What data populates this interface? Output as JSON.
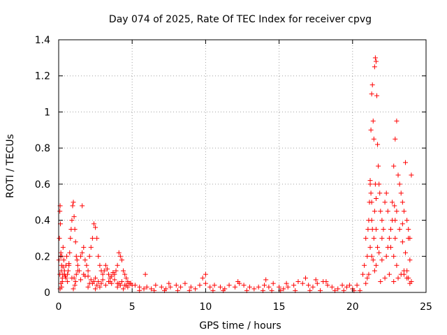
{
  "chart_data": {
    "type": "scatter",
    "title": "Day 074 of 2025, Rate Of TEC Index for receiver cpvg",
    "xlabel": "GPS time / hours",
    "ylabel": "ROTI / TECUs",
    "xlim": [
      0,
      25
    ],
    "ylim": [
      0,
      1.4
    ],
    "xticks": [
      0,
      5,
      10,
      15,
      20,
      25
    ],
    "xtick_labels": [
      "0",
      "5",
      "10",
      "15",
      "20",
      "25"
    ],
    "yticks": [
      0,
      0.2,
      0.4,
      0.6,
      0.8,
      1.0,
      1.2,
      1.4
    ],
    "ytick_labels": [
      "0",
      "0.2",
      "0.4",
      "0.6",
      "0.8",
      "1",
      "1.2",
      "1.4"
    ],
    "grid": true,
    "marker": "+",
    "marker_color": "#ff0000",
    "series": [
      {
        "x": [
          0.02,
          0.05,
          0.08,
          0.1,
          0.12,
          0.15,
          0.18,
          0.2,
          0.22,
          0.25,
          0.28,
          0.3,
          0.35,
          0.4,
          0.45,
          0.5,
          0.55,
          0.6,
          0.65,
          0.7,
          0.75,
          0.8,
          0.85,
          0.9,
          0.95,
          1.0,
          1.05,
          1.1,
          1.15,
          1.2,
          1.25,
          1.3,
          1.4,
          1.5,
          1.6,
          1.7,
          1.8,
          1.9,
          2.0,
          2.1,
          2.2,
          2.3,
          2.4,
          2.5,
          2.6,
          2.7,
          2.8,
          2.9,
          3.0,
          3.1,
          3.2,
          3.3,
          3.4,
          3.5,
          3.6,
          3.7,
          3.8,
          3.9,
          4.0,
          4.1,
          4.2,
          4.3,
          4.4,
          4.5,
          4.6,
          4.7,
          4.8,
          4.9,
          5.0,
          0.1,
          0.15,
          0.2,
          0.25,
          1.0,
          1.05,
          1.1,
          1.15,
          1.6,
          2.0,
          2.1,
          2.2,
          2.5,
          2.6,
          2.7,
          2.8,
          2.9,
          4.0,
          4.1,
          4.2,
          4.3,
          4.4,
          0.3,
          0.4,
          0.6,
          0.9,
          1.2,
          1.5,
          1.8,
          2.3,
          2.4,
          3.2,
          3.4,
          3.6,
          3.8,
          4.5,
          4.7,
          4.9,
          0.08,
          0.12,
          0.5,
          0.7,
          1.3,
          1.7,
          2.0,
          2.5,
          3.0,
          3.5,
          4.0,
          4.6
        ],
        "y": [
          0.18,
          0.3,
          0.45,
          0.48,
          0.38,
          0.22,
          0.12,
          0.15,
          0.2,
          0.08,
          0.1,
          0.14,
          0.18,
          0.12,
          0.09,
          0.15,
          0.2,
          0.1,
          0.12,
          0.16,
          0.22,
          0.3,
          0.35,
          0.4,
          0.48,
          0.5,
          0.42,
          0.35,
          0.28,
          0.2,
          0.18,
          0.15,
          0.12,
          0.2,
          0.22,
          0.25,
          0.18,
          0.15,
          0.12,
          0.2,
          0.25,
          0.3,
          0.38,
          0.36,
          0.3,
          0.2,
          0.15,
          0.12,
          0.1,
          0.12,
          0.15,
          0.13,
          0.1,
          0.08,
          0.09,
          0.11,
          0.1,
          0.12,
          0.15,
          0.22,
          0.2,
          0.18,
          0.12,
          0.1,
          0.08,
          0.06,
          0.05,
          0.05,
          0.04,
          0.02,
          0.05,
          0.03,
          0.06,
          0.02,
          0.08,
          0.04,
          0.06,
          0.48,
          0.03,
          0.05,
          0.07,
          0.02,
          0.04,
          0.06,
          0.03,
          0.05,
          0.03,
          0.05,
          0.04,
          0.06,
          0.02,
          0.25,
          0.1,
          0.06,
          0.08,
          0.1,
          0.07,
          0.09,
          0.05,
          0.06,
          0.04,
          0.06,
          0.05,
          0.07,
          0.04,
          0.03,
          0.05,
          0.1,
          0.2,
          0.08,
          0.15,
          0.12,
          0.1,
          0.09,
          0.08,
          0.07,
          0.06,
          0.05,
          0.04
        ]
      },
      {
        "x": [
          5.2,
          5.5,
          5.8,
          6.0,
          6.3,
          6.6,
          7.0,
          7.3,
          7.6,
          8.0,
          8.3,
          8.6,
          9.0,
          9.3,
          9.6,
          10.0,
          10.3,
          10.6,
          11.0,
          11.3,
          11.6,
          12.0,
          12.3,
          12.6,
          13.0,
          13.3,
          13.6,
          14.0,
          14.3,
          14.6,
          15.0,
          15.3,
          15.6,
          16.0,
          16.3,
          16.6,
          17.0,
          17.3,
          17.6,
          18.0,
          18.3,
          18.6,
          19.0,
          19.3,
          19.6,
          20.0,
          20.3,
          5.9,
          7.5,
          9.8,
          10.0,
          12.2,
          14.1,
          15.5,
          16.8,
          17.5,
          18.2,
          19.8,
          5.5,
          6.5,
          7.2,
          8.1,
          8.9,
          10.5,
          11.2,
          12.8,
          13.9,
          14.5,
          15.1,
          16.1,
          17.1,
          17.8,
          18.8,
          19.4,
          20.1,
          20.5
        ],
        "y": [
          0.04,
          0.03,
          0.02,
          0.03,
          0.02,
          0.04,
          0.03,
          0.02,
          0.03,
          0.04,
          0.03,
          0.05,
          0.03,
          0.02,
          0.04,
          0.05,
          0.03,
          0.04,
          0.03,
          0.02,
          0.04,
          0.03,
          0.05,
          0.04,
          0.03,
          0.02,
          0.03,
          0.04,
          0.03,
          0.05,
          0.03,
          0.02,
          0.03,
          0.04,
          0.06,
          0.05,
          0.04,
          0.03,
          0.05,
          0.06,
          0.04,
          0.03,
          0.02,
          0.04,
          0.03,
          0.02,
          0.04,
          0.1,
          0.05,
          0.08,
          0.1,
          0.06,
          0.07,
          0.05,
          0.08,
          0.07,
          0.06,
          0.04,
          0.01,
          0.01,
          0.01,
          0.01,
          0.01,
          0.01,
          0.01,
          0.01,
          0.01,
          0.01,
          0.01,
          0.01,
          0.01,
          0.01,
          0.01,
          0.01,
          0.01,
          0.01
        ]
      },
      {
        "x": [
          20.7,
          20.8,
          20.9,
          21.0,
          21.05,
          21.1,
          21.15,
          21.2,
          21.25,
          21.3,
          21.35,
          21.4,
          21.45,
          21.5,
          21.55,
          21.6,
          21.65,
          21.7,
          21.75,
          21.8,
          21.85,
          21.9,
          22.0,
          22.1,
          22.2,
          22.3,
          22.4,
          22.5,
          22.6,
          22.7,
          22.8,
          22.9,
          23.0,
          23.1,
          23.2,
          23.3,
          23.4,
          23.5,
          23.6,
          23.7,
          23.8,
          23.9,
          24.0,
          21.2,
          21.25,
          21.3,
          21.5,
          21.55,
          21.6,
          22.85,
          22.9,
          21.35,
          21.45,
          21.7,
          22.8,
          23.0,
          23.5,
          23.7,
          23.8,
          24.0,
          21.2,
          21.3,
          21.4,
          21.6,
          21.8,
          22.0,
          22.3,
          22.6,
          22.9,
          23.2,
          23.4,
          23.6,
          23.9,
          20.9,
          21.0,
          21.1,
          21.5,
          21.9,
          22.2,
          22.5,
          22.8,
          23.1,
          23.3,
          23.5,
          23.7,
          23.9,
          21.3,
          21.6,
          22.0,
          22.4,
          22.7,
          23.0,
          23.4,
          23.8
        ],
        "y": [
          0.1,
          0.15,
          0.3,
          0.2,
          0.35,
          0.4,
          0.5,
          0.6,
          0.9,
          1.1,
          1.15,
          0.95,
          0.85,
          1.25,
          1.3,
          1.28,
          1.09,
          0.82,
          0.7,
          0.6,
          0.55,
          0.45,
          0.4,
          0.35,
          0.5,
          0.55,
          0.45,
          0.3,
          0.35,
          0.5,
          0.7,
          0.85,
          0.95,
          0.65,
          0.6,
          0.55,
          0.5,
          0.45,
          0.72,
          0.4,
          0.35,
          0.3,
          0.65,
          0.62,
          0.55,
          0.5,
          0.45,
          0.6,
          0.52,
          0.48,
          0.4,
          0.35,
          0.3,
          0.25,
          0.2,
          0.15,
          0.1,
          0.12,
          0.08,
          0.06,
          0.25,
          0.2,
          0.18,
          0.15,
          0.22,
          0.18,
          0.2,
          0.25,
          0.3,
          0.35,
          0.28,
          0.22,
          0.18,
          0.05,
          0.08,
          0.1,
          0.12,
          0.06,
          0.08,
          0.1,
          0.06,
          0.08,
          0.1,
          0.12,
          0.08,
          0.05,
          0.4,
          0.35,
          0.3,
          0.25,
          0.4,
          0.45,
          0.38,
          0.3
        ]
      }
    ]
  }
}
